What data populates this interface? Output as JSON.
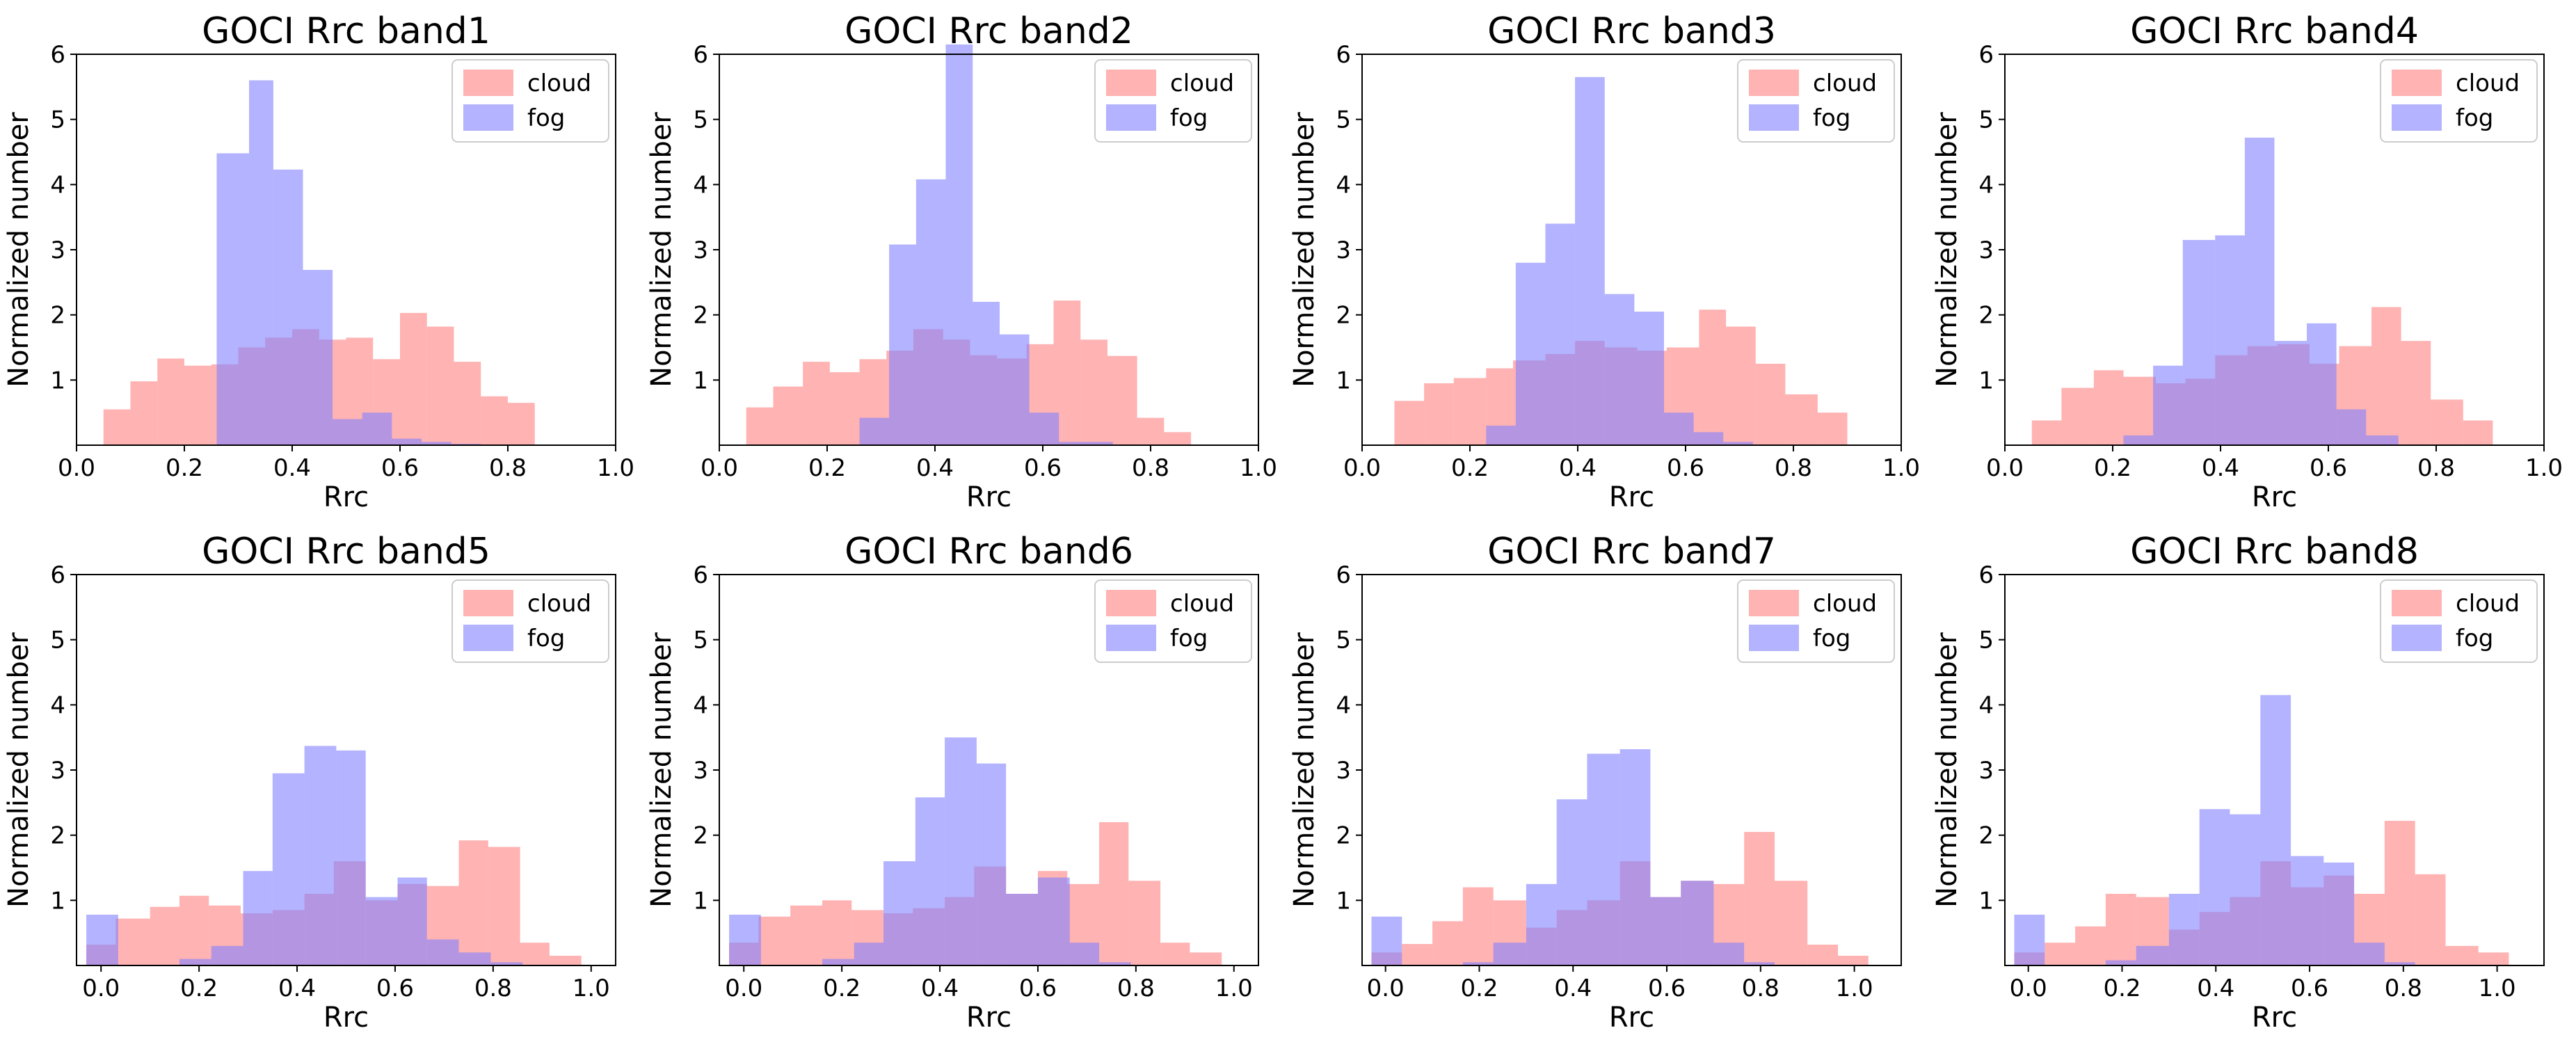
{
  "chart_data": [
    {
      "type": "histogram",
      "title": "GOCI Rrc band1",
      "xlabel": "Rrc",
      "ylabel": "Normalized number",
      "xlim": [
        0.0,
        1.0
      ],
      "ylim": [
        0,
        6
      ],
      "xticks": [
        "0.0",
        "0.2",
        "0.4",
        "0.6",
        "0.8",
        "1.0"
      ],
      "yticks": [
        "1",
        "2",
        "3",
        "4",
        "5",
        "6"
      ],
      "legend": [
        "cloud",
        "fog"
      ],
      "colors": {
        "cloud": "#ff8080",
        "fog": "#8080ff"
      },
      "series": [
        {
          "name": "cloud",
          "edges": [
            0.05,
            0.1,
            0.15,
            0.2,
            0.25,
            0.3,
            0.35,
            0.4,
            0.45,
            0.5,
            0.55,
            0.6,
            0.65,
            0.7,
            0.75,
            0.8,
            0.85
          ],
          "values": [
            0.55,
            0.98,
            1.33,
            1.22,
            1.24,
            1.5,
            1.65,
            1.78,
            1.62,
            1.65,
            1.32,
            2.03,
            1.82,
            1.28,
            0.75,
            0.65
          ]
        },
        {
          "name": "fog",
          "edges": [
            0.26,
            0.32,
            0.365,
            0.42,
            0.475,
            0.53,
            0.585,
            0.64,
            0.695,
            0.75
          ],
          "values": [
            4.48,
            5.6,
            4.23,
            2.69,
            0.4,
            0.5,
            0.1,
            0.05,
            0.02
          ]
        }
      ]
    },
    {
      "type": "histogram",
      "title": "GOCI Rrc band2",
      "xlabel": "Rrc",
      "ylabel": "Normalized number",
      "xlim": [
        0.0,
        1.0
      ],
      "ylim": [
        0,
        6
      ],
      "xticks": [
        "0.0",
        "0.2",
        "0.4",
        "0.6",
        "0.8",
        "1.0"
      ],
      "yticks": [
        "1",
        "2",
        "3",
        "4",
        "5",
        "6"
      ],
      "legend": [
        "cloud",
        "fog"
      ],
      "colors": {
        "cloud": "#ff8080",
        "fog": "#8080ff"
      },
      "series": [
        {
          "name": "cloud",
          "edges": [
            0.05,
            0.1,
            0.155,
            0.205,
            0.26,
            0.31,
            0.36,
            0.415,
            0.465,
            0.515,
            0.57,
            0.62,
            0.67,
            0.72,
            0.775,
            0.825,
            0.875
          ],
          "values": [
            0.58,
            0.9,
            1.28,
            1.12,
            1.32,
            1.45,
            1.78,
            1.62,
            1.38,
            1.33,
            1.55,
            2.22,
            1.62,
            1.37,
            0.42,
            0.2
          ]
        },
        {
          "name": "fog",
          "edges": [
            0.26,
            0.315,
            0.365,
            0.42,
            0.47,
            0.52,
            0.575,
            0.63,
            0.68,
            0.73
          ],
          "values": [
            0.42,
            3.08,
            4.08,
            6.15,
            2.2,
            1.7,
            0.5,
            0.05,
            0.05
          ]
        }
      ]
    },
    {
      "type": "histogram",
      "title": "GOCI Rrc band3",
      "xlabel": "Rrc",
      "ylabel": "Normalized number",
      "xlim": [
        0.0,
        1.0
      ],
      "ylim": [
        0,
        6
      ],
      "xticks": [
        "0.0",
        "0.2",
        "0.4",
        "0.6",
        "0.8",
        "1.0"
      ],
      "yticks": [
        "1",
        "2",
        "3",
        "4",
        "5",
        "6"
      ],
      "legend": [
        "cloud",
        "fog"
      ],
      "colors": {
        "cloud": "#ff8080",
        "fog": "#8080ff"
      },
      "series": [
        {
          "name": "cloud",
          "edges": [
            0.06,
            0.115,
            0.17,
            0.23,
            0.28,
            0.34,
            0.395,
            0.45,
            0.51,
            0.565,
            0.625,
            0.675,
            0.73,
            0.785,
            0.845,
            0.9
          ],
          "values": [
            0.68,
            0.95,
            1.03,
            1.18,
            1.3,
            1.4,
            1.6,
            1.5,
            1.45,
            1.5,
            2.08,
            1.82,
            1.25,
            0.78,
            0.5
          ]
        },
        {
          "name": "fog",
          "edges": [
            0.23,
            0.285,
            0.34,
            0.395,
            0.45,
            0.505,
            0.56,
            0.615,
            0.67,
            0.725
          ],
          "values": [
            0.3,
            2.8,
            3.4,
            5.65,
            2.32,
            2.05,
            0.5,
            0.2,
            0.05
          ]
        }
      ]
    },
    {
      "type": "histogram",
      "title": "GOCI Rrc band4",
      "xlabel": "Rrc",
      "ylabel": "Normalized number",
      "xlim": [
        0.0,
        1.0
      ],
      "ylim": [
        0,
        6
      ],
      "xticks": [
        "0.0",
        "0.2",
        "0.4",
        "0.6",
        "0.8",
        "1.0"
      ],
      "yticks": [
        "1",
        "2",
        "3",
        "4",
        "5",
        "6"
      ],
      "legend": [
        "cloud",
        "fog"
      ],
      "colors": {
        "cloud": "#ff8080",
        "fog": "#8080ff"
      },
      "series": [
        {
          "name": "cloud",
          "edges": [
            0.05,
            0.105,
            0.165,
            0.22,
            0.28,
            0.335,
            0.39,
            0.45,
            0.505,
            0.565,
            0.62,
            0.68,
            0.735,
            0.79,
            0.85,
            0.905
          ],
          "values": [
            0.38,
            0.88,
            1.15,
            1.05,
            0.95,
            1.02,
            1.38,
            1.52,
            1.55,
            1.25,
            1.52,
            2.12,
            1.6,
            0.7,
            0.38
          ]
        },
        {
          "name": "fog",
          "edges": [
            0.22,
            0.275,
            0.33,
            0.39,
            0.445,
            0.5,
            0.56,
            0.615,
            0.67,
            0.73
          ],
          "values": [
            0.15,
            1.22,
            3.15,
            3.22,
            4.72,
            1.6,
            1.87,
            0.55,
            0.15
          ]
        }
      ]
    },
    {
      "type": "histogram",
      "title": "GOCI Rrc band5",
      "xlabel": "Rrc",
      "ylabel": "Normalized number",
      "xlim": [
        -0.05,
        1.05
      ],
      "ylim": [
        0,
        6
      ],
      "xticks": [
        "0.0",
        "0.2",
        "0.4",
        "0.6",
        "0.8",
        "1.0"
      ],
      "yticks": [
        "1",
        "2",
        "3",
        "4",
        "5",
        "6"
      ],
      "legend": [
        "cloud",
        "fog"
      ],
      "colors": {
        "cloud": "#ff8080",
        "fog": "#8080ff"
      },
      "series": [
        {
          "name": "cloud",
          "edges": [
            -0.03,
            0.03,
            0.1,
            0.16,
            0.22,
            0.285,
            0.35,
            0.415,
            0.475,
            0.54,
            0.605,
            0.665,
            0.73,
            0.79,
            0.855,
            0.915,
            0.98
          ],
          "values": [
            0.32,
            0.72,
            0.9,
            1.07,
            0.92,
            0.8,
            0.85,
            1.1,
            1.6,
            1.0,
            1.25,
            1.22,
            1.92,
            1.82,
            0.35,
            0.15
          ]
        },
        {
          "name": "fog",
          "edges": [
            -0.03,
            0.035,
            0.1,
            0.16,
            0.225,
            0.29,
            0.35,
            0.415,
            0.48,
            0.54,
            0.605,
            0.665,
            0.73,
            0.795,
            0.86
          ],
          "values": [
            0.78,
            0.0,
            0.0,
            0.1,
            0.3,
            1.45,
            2.95,
            3.37,
            3.3,
            1.05,
            1.35,
            0.4,
            0.2,
            0.05
          ]
        }
      ]
    },
    {
      "type": "histogram",
      "title": "GOCI Rrc band6",
      "xlabel": "Rrc",
      "ylabel": "Normalized number",
      "xlim": [
        -0.05,
        1.05
      ],
      "ylim": [
        0,
        6
      ],
      "xticks": [
        "0.0",
        "0.2",
        "0.4",
        "0.6",
        "0.8",
        "1.0"
      ],
      "yticks": [
        "1",
        "2",
        "3",
        "4",
        "5",
        "6"
      ],
      "legend": [
        "cloud",
        "fog"
      ],
      "colors": {
        "cloud": "#ff8080",
        "fog": "#8080ff"
      },
      "series": [
        {
          "name": "cloud",
          "edges": [
            -0.03,
            0.03,
            0.095,
            0.16,
            0.22,
            0.285,
            0.345,
            0.41,
            0.47,
            0.535,
            0.6,
            0.66,
            0.725,
            0.785,
            0.85,
            0.91,
            0.975
          ],
          "values": [
            0.35,
            0.75,
            0.92,
            1.0,
            0.85,
            0.8,
            0.88,
            1.05,
            1.52,
            1.1,
            1.45,
            1.25,
            2.2,
            1.3,
            0.35,
            0.2
          ]
        },
        {
          "name": "fog",
          "edges": [
            -0.03,
            0.035,
            0.095,
            0.16,
            0.225,
            0.285,
            0.35,
            0.41,
            0.475,
            0.535,
            0.6,
            0.665,
            0.725,
            0.79
          ],
          "values": [
            0.78,
            0.0,
            0.0,
            0.1,
            0.35,
            1.6,
            2.58,
            3.5,
            3.1,
            1.1,
            1.35,
            0.35,
            0.05
          ]
        }
      ]
    },
    {
      "type": "histogram",
      "title": "GOCI Rrc band7",
      "xlabel": "Rrc",
      "ylabel": "Normalized number",
      "xlim": [
        -0.05,
        1.1
      ],
      "ylim": [
        0,
        6
      ],
      "xticks": [
        "0.0",
        "0.2",
        "0.4",
        "0.6",
        "0.8",
        "1.0"
      ],
      "yticks": [
        "1",
        "2",
        "3",
        "4",
        "5",
        "6"
      ],
      "legend": [
        "cloud",
        "fog"
      ],
      "colors": {
        "cloud": "#ff8080",
        "fog": "#8080ff"
      },
      "series": [
        {
          "name": "cloud",
          "edges": [
            -0.03,
            0.035,
            0.1,
            0.165,
            0.23,
            0.3,
            0.365,
            0.43,
            0.5,
            0.565,
            0.63,
            0.7,
            0.765,
            0.83,
            0.9,
            0.965,
            1.03
          ],
          "values": [
            0.2,
            0.33,
            0.68,
            1.2,
            1.0,
            0.58,
            0.85,
            1.0,
            1.6,
            1.05,
            1.3,
            1.25,
            2.05,
            1.3,
            0.32,
            0.15
          ]
        },
        {
          "name": "fog",
          "edges": [
            -0.03,
            0.035,
            0.1,
            0.165,
            0.23,
            0.3,
            0.365,
            0.43,
            0.5,
            0.565,
            0.63,
            0.7,
            0.765,
            0.83
          ],
          "values": [
            0.75,
            0.0,
            0.0,
            0.05,
            0.35,
            1.25,
            2.55,
            3.25,
            3.32,
            1.05,
            1.3,
            0.35,
            0.05
          ]
        }
      ]
    },
    {
      "type": "histogram",
      "title": "GOCI Rrc band8",
      "xlabel": "Rrc",
      "ylabel": "Normalized number",
      "xlim": [
        -0.05,
        1.1
      ],
      "ylim": [
        0,
        6
      ],
      "xticks": [
        "0.0",
        "0.2",
        "0.4",
        "0.6",
        "0.8",
        "1.0"
      ],
      "yticks": [
        "1",
        "2",
        "3",
        "4",
        "5",
        "6"
      ],
      "legend": [
        "cloud",
        "fog"
      ],
      "colors": {
        "cloud": "#ff8080",
        "fog": "#8080ff"
      },
      "series": [
        {
          "name": "cloud",
          "edges": [
            -0.03,
            0.035,
            0.1,
            0.165,
            0.23,
            0.3,
            0.365,
            0.43,
            0.495,
            0.56,
            0.63,
            0.695,
            0.76,
            0.825,
            0.89,
            0.96,
            1.025
          ],
          "values": [
            0.2,
            0.35,
            0.6,
            1.1,
            1.05,
            0.55,
            0.82,
            1.05,
            1.6,
            1.2,
            1.38,
            1.1,
            2.22,
            1.4,
            0.3,
            0.2
          ]
        },
        {
          "name": "fog",
          "edges": [
            -0.03,
            0.035,
            0.1,
            0.165,
            0.23,
            0.3,
            0.365,
            0.43,
            0.495,
            0.56,
            0.63,
            0.695,
            0.76,
            0.825
          ],
          "values": [
            0.78,
            0.0,
            0.0,
            0.08,
            0.3,
            1.1,
            2.4,
            2.32,
            4.15,
            1.68,
            1.58,
            0.35,
            0.05
          ]
        }
      ]
    }
  ]
}
